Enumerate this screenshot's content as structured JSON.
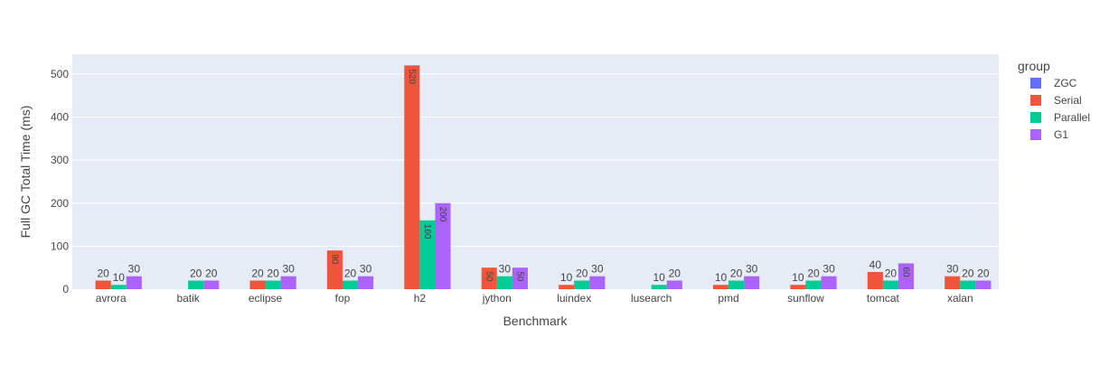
{
  "chart_data": {
    "type": "bar",
    "title": "",
    "xlabel": "Benchmark",
    "ylabel": "Full GC Total Time (ms)",
    "ylim": [
      0,
      546
    ],
    "yticks": [
      0,
      100,
      200,
      300,
      400,
      500
    ],
    "grid": true,
    "legend_title": "group",
    "legend_position": "right",
    "categories": [
      "avrora",
      "batik",
      "eclipse",
      "fop",
      "h2",
      "jython",
      "luindex",
      "lusearch",
      "pmd",
      "sunflow",
      "tomcat",
      "xalan"
    ],
    "series": [
      {
        "name": "ZGC",
        "color": "#636efa",
        "values": [
          null,
          null,
          null,
          null,
          null,
          null,
          null,
          null,
          null,
          null,
          null,
          null
        ]
      },
      {
        "name": "Serial",
        "color": "#ef553b",
        "values": [
          20,
          null,
          20,
          90,
          520,
          50,
          10,
          null,
          10,
          10,
          40,
          30
        ]
      },
      {
        "name": "Parallel",
        "color": "#00cc96",
        "values": [
          10,
          20,
          20,
          20,
          160,
          30,
          20,
          10,
          20,
          20,
          20,
          20
        ]
      },
      {
        "name": "G1",
        "color": "#ab63fa",
        "values": [
          30,
          20,
          30,
          30,
          200,
          50,
          30,
          20,
          30,
          30,
          60,
          20
        ]
      }
    ]
  },
  "colors": {
    "plot_bg": "#e5ecf6",
    "grid": "#ffffff",
    "text": "#444444",
    "axis_title": "#444444"
  }
}
